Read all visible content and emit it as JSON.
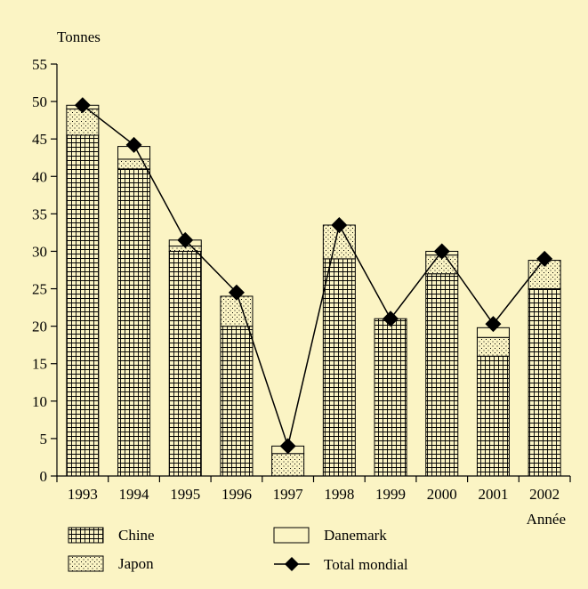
{
  "chart_data": {
    "type": "bar",
    "stacked": true,
    "ylabel": "Tonnes",
    "xlabel": "Année",
    "ylim": [
      0,
      55
    ],
    "yticks": [
      0,
      5,
      10,
      15,
      20,
      25,
      30,
      35,
      40,
      45,
      50,
      55
    ],
    "categories": [
      "1993",
      "1994",
      "1995",
      "1996",
      "1997",
      "1998",
      "1999",
      "2000",
      "2001",
      "2002"
    ],
    "series": [
      {
        "name": "Chine",
        "pattern": "grid",
        "values": [
          45.5,
          41,
          30,
          20,
          0,
          29,
          21,
          27,
          16,
          25
        ]
      },
      {
        "name": "Japon",
        "pattern": "dots",
        "values": [
          3.5,
          1.3,
          0.7,
          4,
          3,
          4.5,
          0,
          2.5,
          2.5,
          3.8
        ]
      },
      {
        "name": "Danemark",
        "pattern": "blank",
        "values": [
          0.5,
          1.7,
          0.8,
          0,
          1,
          0,
          0,
          0.5,
          1.3,
          0
        ]
      }
    ],
    "line": {
      "name": "Total mondial",
      "values": [
        49.5,
        44.2,
        31.5,
        24.5,
        4,
        33.5,
        21,
        30,
        20.3,
        29
      ]
    },
    "legend_position": "bottom",
    "grid": false
  },
  "colors": {
    "background": "#fbf4c4",
    "bar_fill": "#fbf4c4",
    "ink": "#000000"
  }
}
